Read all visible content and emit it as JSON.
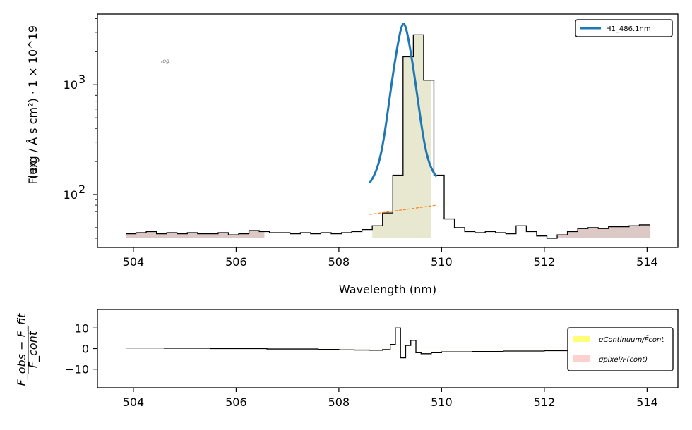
{
  "chart_data": [
    {
      "type": "line",
      "panel": "main",
      "xlabel": "Wavelength (nm)",
      "ylabel": "Flux",
      "ylabel_units": "(erg / Å s cm²) · 1 × 10^19",
      "yscale": "log",
      "annotation": "log",
      "xlim": [
        503.3,
        514.6
      ],
      "ylim": [
        33,
        4400
      ],
      "xticks": [
        {
          "value": 504,
          "label": "504"
        },
        {
          "value": 506,
          "label": "506"
        },
        {
          "value": 508,
          "label": "508"
        },
        {
          "value": 510,
          "label": "510"
        },
        {
          "value": 512,
          "label": "512"
        },
        {
          "value": 514,
          "label": "514"
        }
      ],
      "yticks": [
        {
          "value": 100,
          "base": "10",
          "exp": "2"
        },
        {
          "value": 1000,
          "base": "10",
          "exp": "3"
        }
      ],
      "legend": {
        "position": "top-right",
        "entries": [
          {
            "name": "H1_486.1nm",
            "color": "#1f77b4"
          }
        ]
      },
      "step_spectrum": {
        "color": "#000000",
        "x": [
          503.85,
          504.05,
          504.25,
          504.45,
          504.65,
          504.85,
          505.05,
          505.25,
          505.45,
          505.65,
          505.85,
          506.05,
          506.25,
          506.45,
          506.65,
          506.85,
          507.05,
          507.25,
          507.45,
          507.65,
          507.85,
          508.05,
          508.25,
          508.45,
          508.65,
          508.85,
          509.05,
          509.25,
          509.45,
          509.65,
          509.85,
          510.05,
          510.25,
          510.45,
          510.65,
          510.85,
          511.05,
          511.25,
          511.45,
          511.65,
          511.85,
          512.05,
          512.25,
          512.45,
          512.65,
          512.85,
          513.05,
          513.25,
          513.45,
          513.65,
          513.85,
          514.05
        ],
        "y": [
          44,
          45,
          46,
          44,
          45,
          44,
          45,
          44,
          44,
          45,
          43,
          44,
          47,
          46,
          45,
          45,
          44,
          45,
          44,
          45,
          44,
          45,
          46,
          48,
          52,
          68,
          150,
          1800,
          2850,
          1100,
          150,
          60,
          50,
          46,
          45,
          46,
          45,
          44,
          52,
          46,
          42,
          40,
          43,
          46,
          49,
          50,
          49,
          51,
          51,
          52,
          53,
          53
        ]
      },
      "gaussian_fit": {
        "name": "H1_486.1nm",
        "color": "#1f77b4",
        "amplitude": 3500,
        "center": 509.26,
        "sigma": 0.16,
        "gamma": 0.12,
        "base_left": 66,
        "base_right": 80,
        "x_range": [
          508.6,
          509.9
        ]
      },
      "continuum_line": {
        "color": "#ff7f0e",
        "x": [
          508.6,
          509.9
        ],
        "y": [
          66,
          80
        ]
      },
      "line_band": {
        "color": "#e8e8d0",
        "x_range": [
          508.65,
          509.8
        ],
        "bottom": 40
      },
      "continuum_bands": [
        {
          "color": "#dcc8c4",
          "x_range": [
            503.85,
            506.55
          ],
          "bottom": 40
        },
        {
          "color": "#dcc8c4",
          "x_range": [
            512.1,
            514.05
          ],
          "bottom": 40
        }
      ]
    },
    {
      "type": "line",
      "panel": "residual",
      "ylabel_num": "F_obs − F_fit",
      "ylabel_den": "F_cont",
      "xlim": [
        503.3,
        514.6
      ],
      "ylim": [
        -19,
        19
      ],
      "xticks": [
        {
          "value": 504,
          "label": "504"
        },
        {
          "value": 506,
          "label": "506"
        },
        {
          "value": 508,
          "label": "508"
        },
        {
          "value": 510,
          "label": "510"
        },
        {
          "value": 512,
          "label": "512"
        },
        {
          "value": 514,
          "label": "514"
        }
      ],
      "yticks": [
        {
          "value": 10,
          "label": "10"
        },
        {
          "value": 0,
          "label": "0"
        },
        {
          "value": -10,
          "label": "−10"
        }
      ],
      "legend": {
        "position": "right",
        "entries": [
          {
            "name": "σContinuum/F̄cont",
            "color": "#ffff77"
          },
          {
            "name": "σpixel/F(cont)",
            "color": "#ffd0d0"
          }
        ]
      },
      "residual": {
        "color": "#000000",
        "x": [
          503.85,
          504.6,
          505.5,
          506.6,
          507.6,
          508.0,
          508.3,
          508.6,
          508.85,
          509.0,
          509.1,
          509.2,
          509.3,
          509.4,
          509.5,
          509.6,
          509.8,
          510.0,
          510.6,
          511.2,
          512.0,
          514.05
        ],
        "y": [
          0.3,
          0.2,
          0,
          -0.2,
          -0.4,
          -0.6,
          -0.7,
          -0.8,
          -0.5,
          2.0,
          10.0,
          -4.5,
          1.5,
          4.0,
          -2.0,
          -2.5,
          -2.0,
          -1.6,
          -1.4,
          -1.2,
          -1.0,
          -0.8
        ]
      },
      "continuum_error_band": {
        "color": "#ffee88",
        "x_range": [
          507.6,
          514.05
        ],
        "value": 0.4
      }
    }
  ]
}
